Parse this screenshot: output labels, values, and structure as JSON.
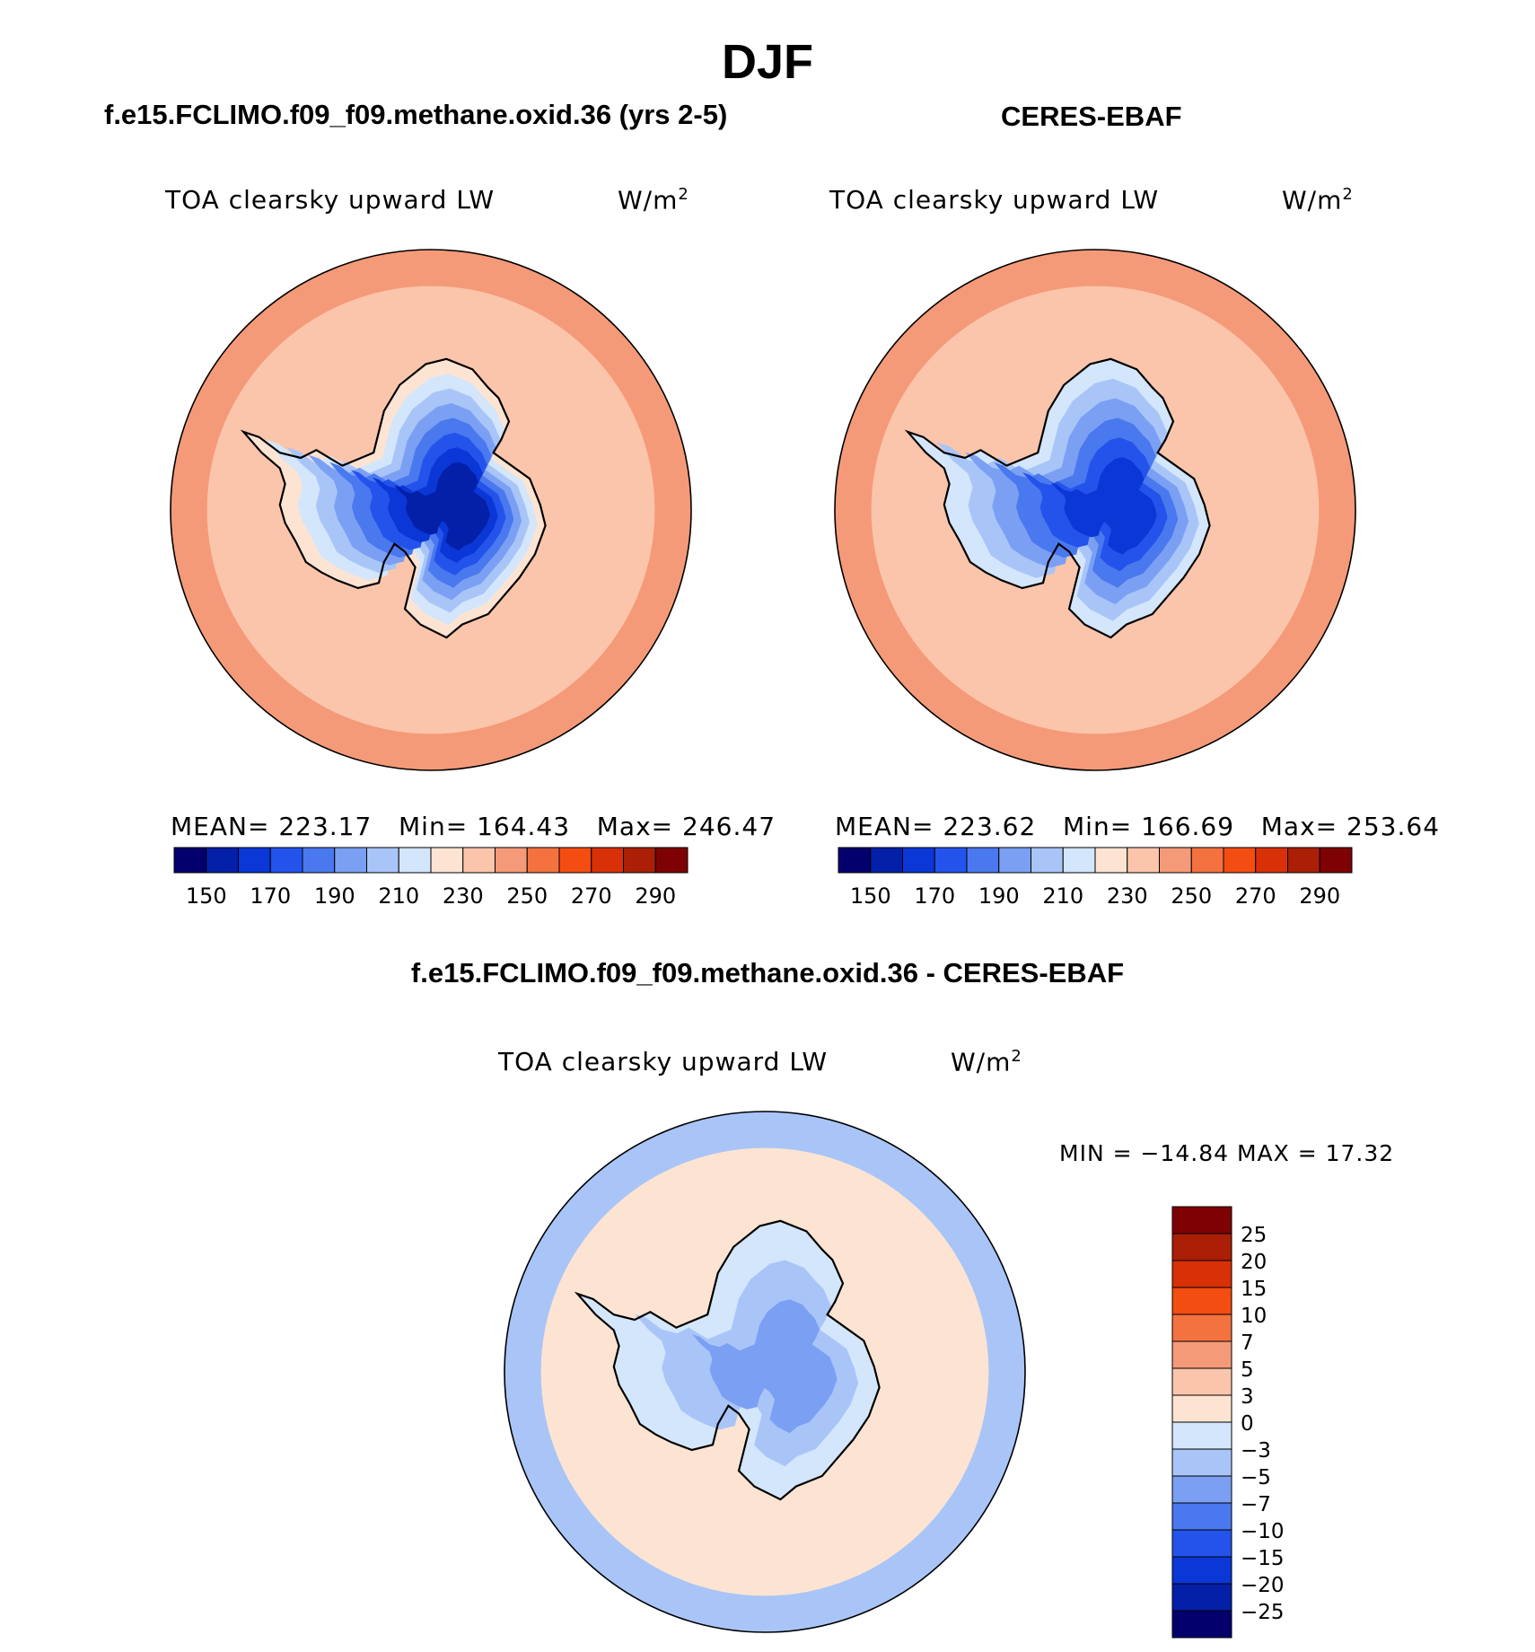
{
  "page": {
    "season_title": "DJF",
    "panel_left_title": "f.e15.FCLIMO.f09_f09.methane.oxid.36 (yrs 2-5)",
    "panel_right_title": "CERES-EBAF",
    "panel_diff_title": "f.e15.FCLIMO.f09_f09.methane.oxid.36 - CERES-EBAF"
  },
  "chart_data": [
    {
      "type": "heatmap",
      "projection": "south-polar-stereographic",
      "variable_label": "TOA clearsky upward LW",
      "units_label": "W/m",
      "units_superscript": "2",
      "stats": {
        "mean_label": "MEAN=",
        "mean": "223.17",
        "min_label": "Min=",
        "min": "164.43",
        "max_label": "Max=",
        "max": "246.47"
      },
      "levels": [
        150,
        160,
        170,
        180,
        190,
        200,
        210,
        220,
        230,
        240,
        250,
        260,
        270,
        280,
        290
      ],
      "colorbar_tick_labels": [
        "150",
        "170",
        "190",
        "210",
        "230",
        "250",
        "270",
        "290"
      ],
      "colors": [
        "#03006e",
        "#0420a8",
        "#0a37d6",
        "#2453ec",
        "#4a78ee",
        "#7ba0f3",
        "#a9c5f8",
        "#d3e6fb",
        "#fde4d2",
        "#fbc5ac",
        "#f59a78",
        "#f3723f",
        "#f44d12",
        "#d83007",
        "#aa1f06",
        "#7e0204"
      ],
      "field": {
        "ocean_level": 9,
        "ocean_outer_level": 10,
        "continent_levels": [
          8,
          7,
          6,
          5,
          4,
          3,
          2,
          1
        ]
      }
    },
    {
      "type": "heatmap",
      "projection": "south-polar-stereographic",
      "variable_label": "TOA clearsky upward LW",
      "units_label": "W/m",
      "units_superscript": "2",
      "stats": {
        "mean_label": "MEAN=",
        "mean": "223.62",
        "min_label": "Min=",
        "min": "166.69",
        "max_label": "Max=",
        "max": "253.64"
      },
      "levels": [
        150,
        160,
        170,
        180,
        190,
        200,
        210,
        220,
        230,
        240,
        250,
        260,
        270,
        280,
        290
      ],
      "colorbar_tick_labels": [
        "150",
        "170",
        "190",
        "210",
        "230",
        "250",
        "270",
        "290"
      ],
      "colors": [
        "#03006e",
        "#0420a8",
        "#0a37d6",
        "#2453ec",
        "#4a78ee",
        "#7ba0f3",
        "#a9c5f8",
        "#d3e6fb",
        "#fde4d2",
        "#fbc5ac",
        "#f59a78",
        "#f3723f",
        "#f44d12",
        "#d83007",
        "#aa1f06",
        "#7e0204"
      ],
      "field": {
        "ocean_level": 9,
        "ocean_outer_level": 10,
        "continent_levels": [
          7,
          6,
          5,
          4,
          3,
          2
        ]
      }
    },
    {
      "type": "heatmap",
      "projection": "south-polar-stereographic",
      "variable_label": "TOA clearsky upward LW",
      "units_label": "W/m",
      "units_superscript": "2",
      "stats_line": "MIN = −14.84 MAX =   17.32",
      "stats": {
        "min": -14.84,
        "max": 17.32
      },
      "levels": [
        -25,
        -20,
        -15,
        -10,
        -7,
        -5,
        -3,
        0,
        3,
        5,
        7,
        10,
        15,
        20,
        25
      ],
      "colorbar_tick_labels": [
        "25",
        "20",
        "15",
        "10",
        "7",
        "5",
        "3",
        "0",
        "−3",
        "−5",
        "−7",
        "−10",
        "−15",
        "−20",
        "−25"
      ],
      "colors": [
        "#03006e",
        "#0420a8",
        "#0a37d6",
        "#2453ec",
        "#4a78ee",
        "#7ba0f3",
        "#a9c5f8",
        "#d3e6fb",
        "#fde4d2",
        "#fbc5ac",
        "#f59a78",
        "#f3723f",
        "#f44d12",
        "#d83007",
        "#aa1f06",
        "#7e0204"
      ],
      "field": {
        "ocean_level": 8,
        "ocean_outer_level": 6,
        "continent_levels": [
          7,
          6,
          5
        ]
      }
    }
  ]
}
